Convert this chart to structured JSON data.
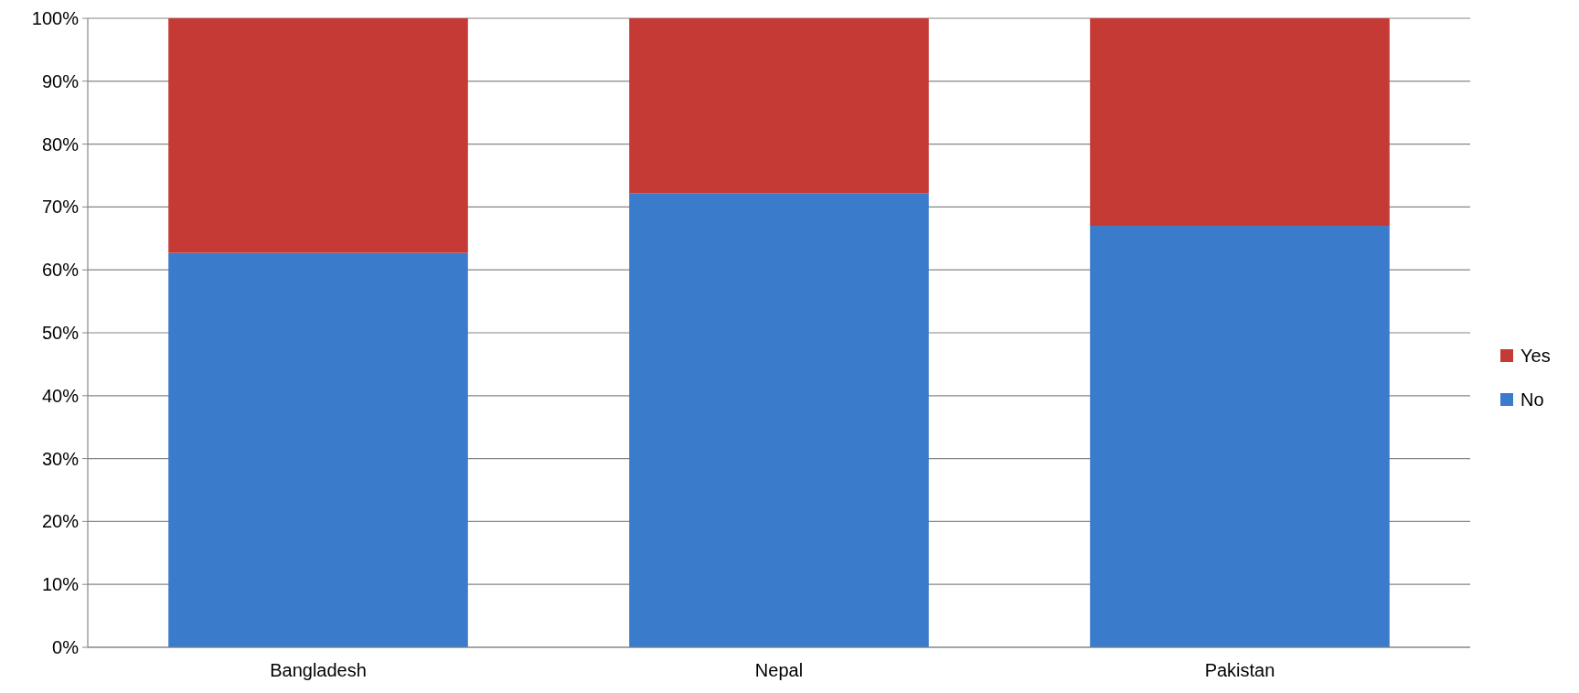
{
  "chart_data": {
    "type": "bar",
    "stacked": true,
    "categories": [
      "Bangladesh",
      "Nepal",
      "Pakistan"
    ],
    "series": [
      {
        "name": "No",
        "color": "#3a7bcc",
        "values": [
          62.7,
          72.2,
          67
        ]
      },
      {
        "name": "Yes",
        "color": "#c63a36",
        "values": [
          37.3,
          27.8,
          33
        ]
      }
    ],
    "ylim": [
      0,
      100
    ],
    "yticks": [
      {
        "value": 0,
        "label": "0%"
      },
      {
        "value": 10,
        "label": "10%"
      },
      {
        "value": 20,
        "label": "20%"
      },
      {
        "value": 30,
        "label": "30%"
      },
      {
        "value": 40,
        "label": "40%"
      },
      {
        "value": 50,
        "label": "50%"
      },
      {
        "value": 60,
        "label": "60%"
      },
      {
        "value": 70,
        "label": "70%"
      },
      {
        "value": 80,
        "label": "80%"
      },
      {
        "value": 90,
        "label": "90%"
      },
      {
        "value": 100,
        "label": "100%"
      }
    ],
    "grid": "y",
    "legend": "right"
  }
}
